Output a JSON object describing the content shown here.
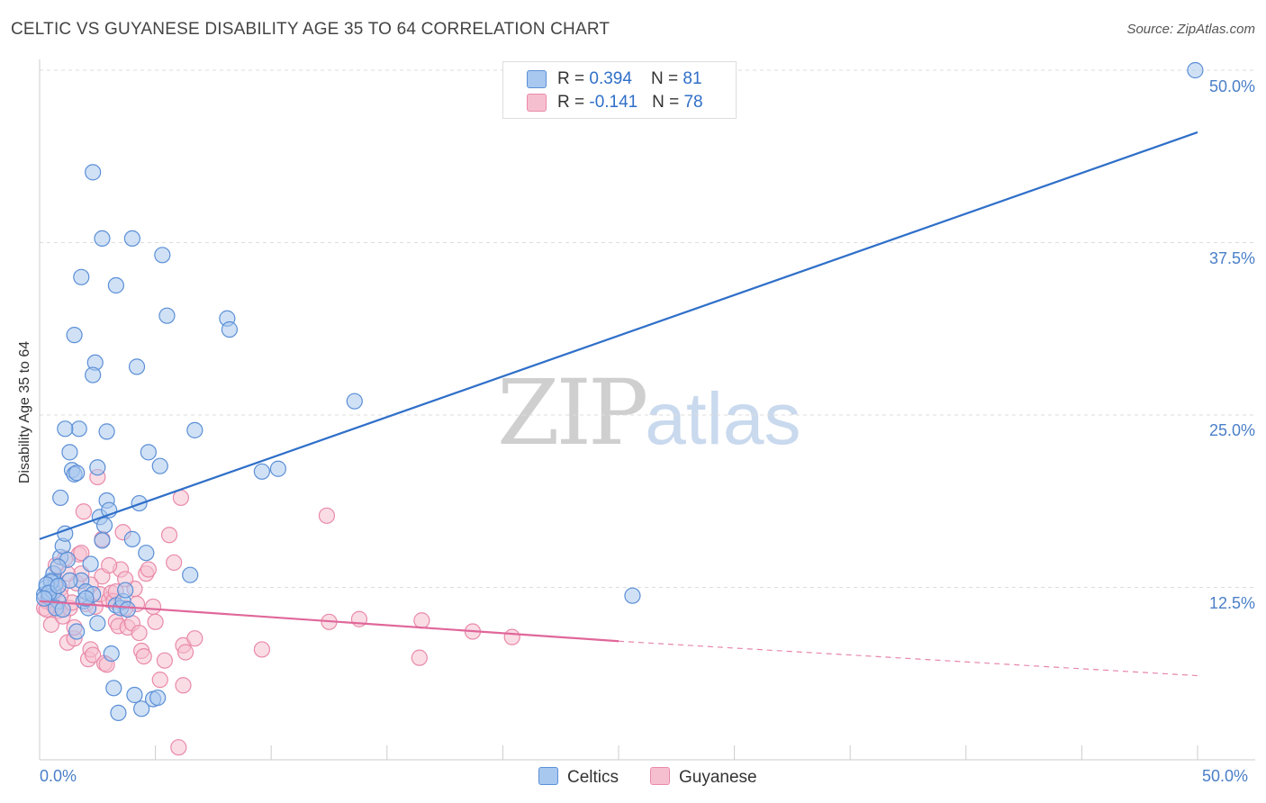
{
  "header": {
    "title": "CELTIC VS GUYANESE DISABILITY AGE 35 TO 64 CORRELATION CHART",
    "source": "Source: ZipAtlas.com"
  },
  "watermark": {
    "zip": "ZIP",
    "atlas": "atlas"
  },
  "legend": {
    "celtics": {
      "r_label": "R = ",
      "r_value": "0.394",
      "n_label": "N = ",
      "n_value": "81"
    },
    "guyanese": {
      "r_label": "R = ",
      "r_value": "-0.141",
      "n_label": "N = ",
      "n_value": "78"
    }
  },
  "bottom_legend": {
    "celtics": "Celtics",
    "guyanese": "Guyanese"
  },
  "colors": {
    "celtics_fill": "#a9c8ef",
    "celtics_stroke": "#5b8fd6",
    "celtics_line": "#2f6fc9",
    "guyanese_fill": "#f6bfd0",
    "guyanese_stroke": "#e98aa9",
    "guyanese_line": "#e0679a",
    "grid": "#dddddd",
    "tick_text": "#4a7fc8"
  },
  "chart_data": {
    "type": "scatter",
    "title": "CELTIC VS GUYANESE DISABILITY AGE 35 TO 64 CORRELATION CHART",
    "xlabel": "",
    "ylabel": "Disability Age 35 to 64",
    "xlim": [
      0,
      50
    ],
    "ylim": [
      0,
      50
    ],
    "x_tick_labels": [
      "0.0%",
      "50.0%"
    ],
    "y_ticks": [
      12.5,
      25.0,
      37.5,
      50.0
    ],
    "y_tick_labels": [
      "12.5%",
      "25.0%",
      "37.5%",
      "50.0%"
    ],
    "grid": true,
    "legend_position": "top-center",
    "series": [
      {
        "name": "Celtics",
        "r": 0.394,
        "n": 81,
        "trend": {
          "x": [
            0,
            50
          ],
          "y": [
            16.0,
            45.5
          ],
          "dashed_from": null
        },
        "points": [
          [
            0.2,
            12.0
          ],
          [
            0.3,
            12.5
          ],
          [
            0.4,
            11.8
          ],
          [
            0.5,
            13.0
          ],
          [
            0.6,
            12.2
          ],
          [
            0.7,
            12.8
          ],
          [
            0.8,
            11.5
          ],
          [
            0.6,
            13.5
          ],
          [
            0.9,
            14.7
          ],
          [
            1.0,
            15.5
          ],
          [
            1.1,
            16.4
          ],
          [
            0.9,
            19.0
          ],
          [
            1.2,
            14.5
          ],
          [
            1.3,
            22.3
          ],
          [
            1.4,
            21.0
          ],
          [
            1.5,
            20.7
          ],
          [
            1.6,
            20.8
          ],
          [
            1.7,
            24.0
          ],
          [
            1.8,
            13.0
          ],
          [
            1.9,
            11.5
          ],
          [
            2.0,
            12.2
          ],
          [
            2.1,
            11.0
          ],
          [
            2.2,
            14.2
          ],
          [
            2.3,
            12.0
          ],
          [
            2.4,
            28.8
          ],
          [
            2.5,
            9.9
          ],
          [
            2.6,
            17.6
          ],
          [
            2.7,
            15.9
          ],
          [
            2.8,
            17.0
          ],
          [
            2.9,
            18.8
          ],
          [
            3.0,
            18.1
          ],
          [
            3.1,
            7.7
          ],
          [
            3.2,
            5.2
          ],
          [
            3.3,
            11.2
          ],
          [
            3.4,
            3.4
          ],
          [
            3.5,
            11.0
          ],
          [
            3.6,
            11.5
          ],
          [
            3.7,
            12.3
          ],
          [
            3.8,
            10.9
          ],
          [
            4.0,
            16.0
          ],
          [
            4.1,
            4.7
          ],
          [
            4.3,
            18.6
          ],
          [
            4.4,
            3.7
          ],
          [
            4.6,
            15.0
          ],
          [
            4.7,
            22.3
          ],
          [
            4.9,
            4.4
          ],
          [
            5.1,
            4.5
          ],
          [
            5.2,
            21.3
          ],
          [
            5.3,
            36.6
          ],
          [
            5.5,
            32.2
          ],
          [
            6.5,
            13.4
          ],
          [
            6.7,
            23.9
          ],
          [
            8.1,
            32.0
          ],
          [
            8.2,
            31.2
          ],
          [
            9.6,
            20.9
          ],
          [
            10.3,
            21.1
          ],
          [
            13.6,
            26.0
          ],
          [
            25.6,
            11.9
          ],
          [
            49.9,
            50.0
          ],
          [
            2.3,
            42.6
          ],
          [
            2.7,
            37.8
          ],
          [
            4.0,
            37.8
          ],
          [
            1.8,
            35.0
          ],
          [
            3.3,
            34.4
          ],
          [
            1.5,
            30.8
          ],
          [
            2.3,
            27.9
          ],
          [
            4.2,
            28.5
          ],
          [
            1.1,
            24.0
          ],
          [
            2.9,
            23.8
          ],
          [
            2.5,
            21.2
          ],
          [
            0.8,
            14.0
          ],
          [
            1.3,
            13.0
          ],
          [
            0.5,
            12.9
          ],
          [
            0.7,
            11.0
          ],
          [
            1.6,
            9.3
          ],
          [
            0.3,
            12.7
          ],
          [
            0.4,
            12.1
          ],
          [
            0.2,
            11.7
          ],
          [
            0.8,
            12.6
          ],
          [
            2.0,
            11.7
          ],
          [
            1.0,
            10.9
          ]
        ]
      },
      {
        "name": "Guyanese",
        "r": -0.141,
        "n": 78,
        "trend": {
          "x": [
            0,
            25,
            50
          ],
          "y": [
            11.5,
            8.6,
            6.1
          ],
          "dashed_from": 25
        },
        "points": [
          [
            0.2,
            11.0
          ],
          [
            0.3,
            11.5
          ],
          [
            0.4,
            12.0
          ],
          [
            0.5,
            9.8
          ],
          [
            0.6,
            11.2
          ],
          [
            0.7,
            13.0
          ],
          [
            0.8,
            10.8
          ],
          [
            0.9,
            12.4
          ],
          [
            1.0,
            10.4
          ],
          [
            1.1,
            14.6
          ],
          [
            1.2,
            8.5
          ],
          [
            1.3,
            11.0
          ],
          [
            1.4,
            11.4
          ],
          [
            1.5,
            8.8
          ],
          [
            1.6,
            12.8
          ],
          [
            1.7,
            14.9
          ],
          [
            1.8,
            13.5
          ],
          [
            1.9,
            18.0
          ],
          [
            2.0,
            11.3
          ],
          [
            2.1,
            7.3
          ],
          [
            2.2,
            8.0
          ],
          [
            2.3,
            7.6
          ],
          [
            2.4,
            11.1
          ],
          [
            2.5,
            20.5
          ],
          [
            2.6,
            12.0
          ],
          [
            2.7,
            13.3
          ],
          [
            2.8,
            7.0
          ],
          [
            2.9,
            6.9
          ],
          [
            3.0,
            11.6
          ],
          [
            3.1,
            12.1
          ],
          [
            3.2,
            11.5
          ],
          [
            3.3,
            10.0
          ],
          [
            3.4,
            9.7
          ],
          [
            3.5,
            13.8
          ],
          [
            3.6,
            16.5
          ],
          [
            3.7,
            11.0
          ],
          [
            3.8,
            9.6
          ],
          [
            4.0,
            9.9
          ],
          [
            4.1,
            12.4
          ],
          [
            4.2,
            11.3
          ],
          [
            4.3,
            9.2
          ],
          [
            4.4,
            7.9
          ],
          [
            4.5,
            7.5
          ],
          [
            4.6,
            13.5
          ],
          [
            4.7,
            13.8
          ],
          [
            4.9,
            11.1
          ],
          [
            5.0,
            10.0
          ],
          [
            5.2,
            5.8
          ],
          [
            5.4,
            7.2
          ],
          [
            5.6,
            16.3
          ],
          [
            5.8,
            14.3
          ],
          [
            6.1,
            19.0
          ],
          [
            6.2,
            8.3
          ],
          [
            6.3,
            7.8
          ],
          [
            6.7,
            8.8
          ],
          [
            6.2,
            5.4
          ],
          [
            6.0,
            0.9
          ],
          [
            9.6,
            8.0
          ],
          [
            12.4,
            17.7
          ],
          [
            12.5,
            10.0
          ],
          [
            13.8,
            10.2
          ],
          [
            16.4,
            7.4
          ],
          [
            16.5,
            10.1
          ],
          [
            18.7,
            9.3
          ],
          [
            20.4,
            8.9
          ],
          [
            3.0,
            14.1
          ],
          [
            2.7,
            16.0
          ],
          [
            1.8,
            15.0
          ],
          [
            0.6,
            12.0
          ],
          [
            0.4,
            11.6
          ],
          [
            0.3,
            10.9
          ],
          [
            1.5,
            9.6
          ],
          [
            3.3,
            12.2
          ],
          [
            3.7,
            13.1
          ],
          [
            0.9,
            11.9
          ],
          [
            1.2,
            13.5
          ],
          [
            2.2,
            12.7
          ],
          [
            0.7,
            14.1
          ]
        ]
      }
    ]
  }
}
